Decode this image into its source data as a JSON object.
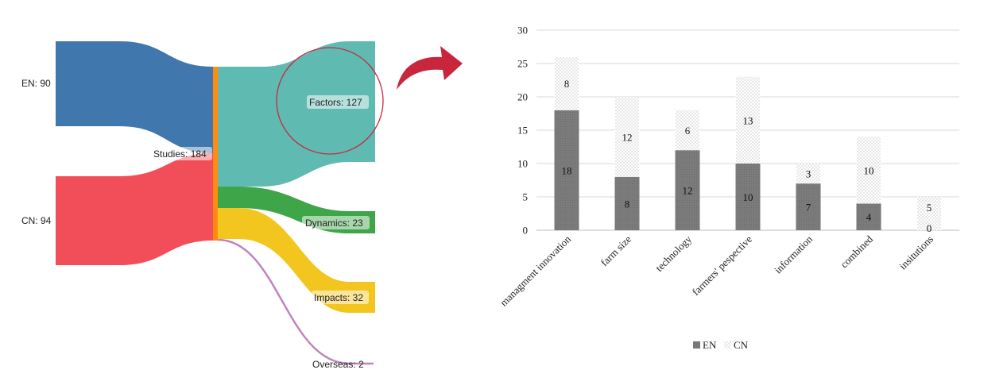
{
  "sankey": {
    "sources": [
      {
        "label": "EN: 90",
        "value": 90,
        "color": "#4077ac"
      },
      {
        "label": "CN: 94",
        "value": 94,
        "color": "#f14e5a"
      }
    ],
    "hub": {
      "label": "Studies: 184",
      "value": 184,
      "color": "#ff8b10"
    },
    "targets": [
      {
        "label": "Factors: 127",
        "value": 127,
        "color": "#5fbbb2"
      },
      {
        "label": "Dynamics: 23",
        "value": 23,
        "color": "#3ea548"
      },
      {
        "label": "Impacts: 32",
        "value": 32,
        "color": "#f3c61f"
      },
      {
        "label": "Overseas: 2",
        "value": 2,
        "color": "#c084be"
      }
    ],
    "highlight_color": "#c8283f",
    "arrow_color": "#c8263c"
  },
  "chart_data": {
    "type": "bar",
    "stacked": true,
    "categories": [
      "managment innovation",
      "farm size",
      "technology",
      "farmers' pespective",
      "information",
      "combined",
      "insitutions"
    ],
    "series": [
      {
        "name": "EN",
        "values": [
          18,
          8,
          12,
          10,
          7,
          4,
          0
        ],
        "color": "#7a7a7a"
      },
      {
        "name": "CN",
        "values": [
          8,
          12,
          6,
          13,
          3,
          10,
          5
        ],
        "color": "dotted"
      }
    ],
    "yticks": [
      "0",
      "5",
      "10",
      "15",
      "20",
      "25",
      "30"
    ],
    "ylim": [
      0,
      30
    ],
    "grid": true,
    "legend": "bottom"
  }
}
